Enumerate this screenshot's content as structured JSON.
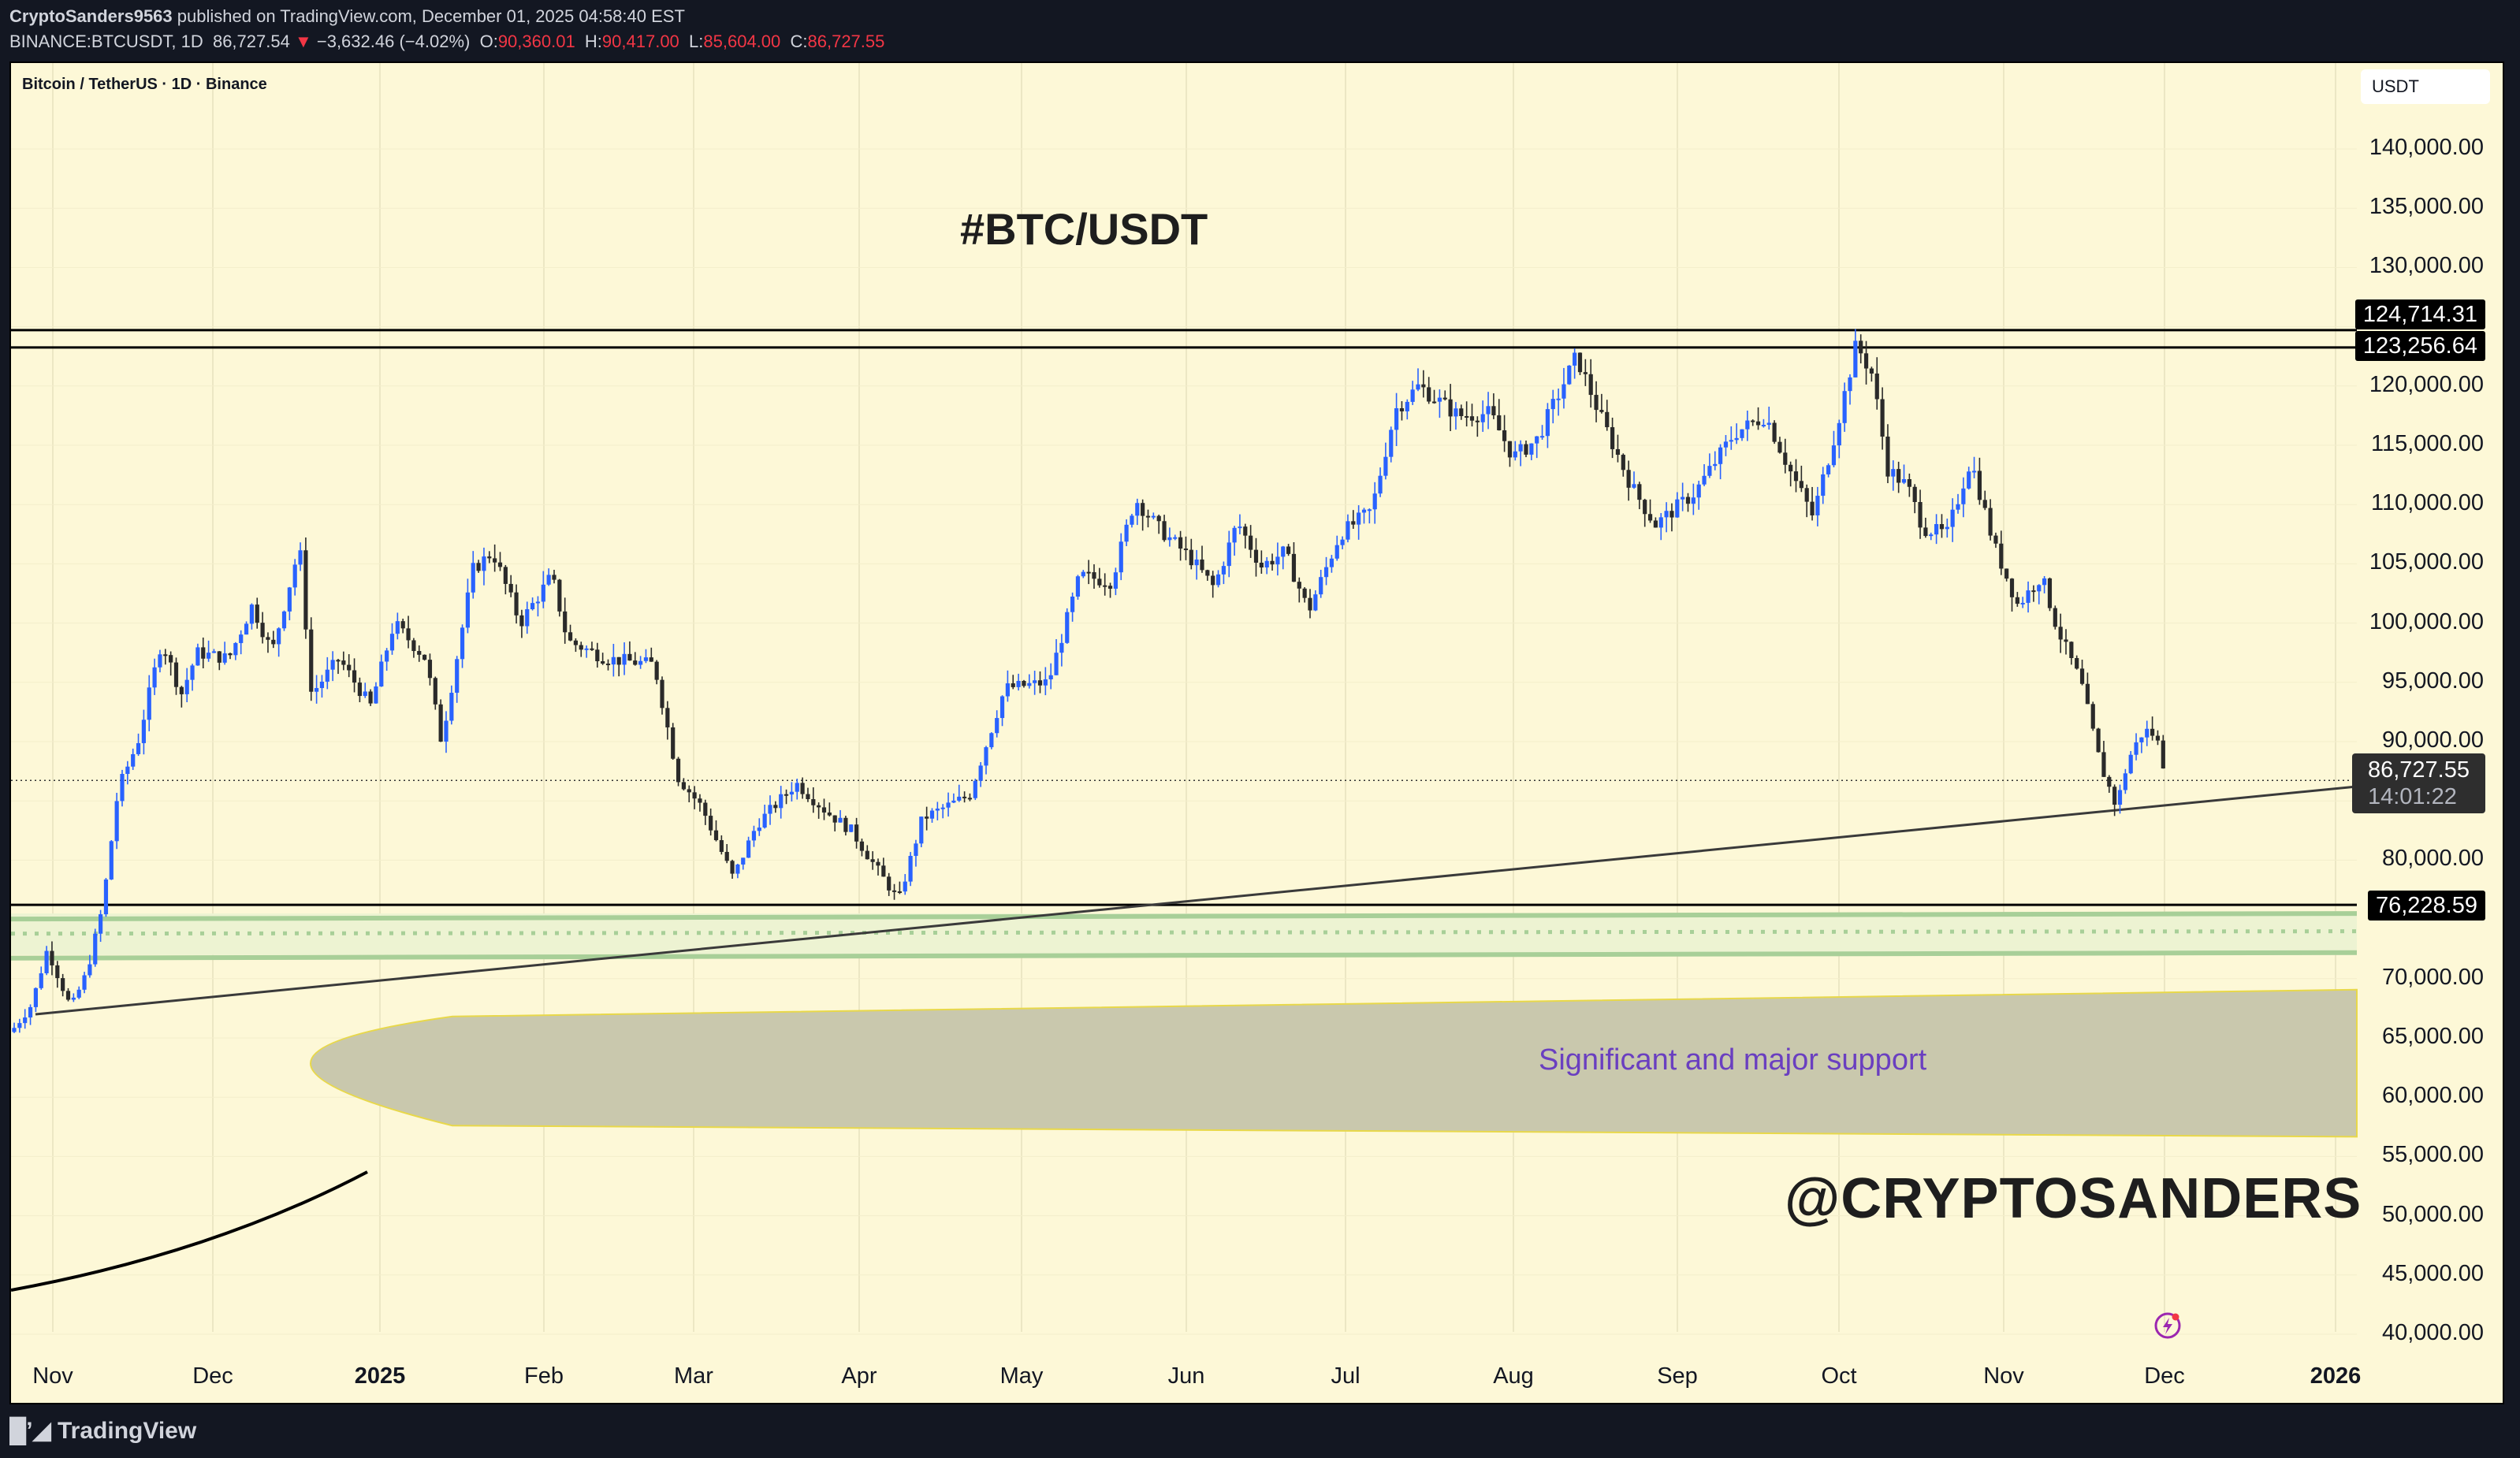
{
  "header": {
    "author": "CryptoSanders9563",
    "published_text": "published on TradingView.com, December 01, 2025 04:58:40 EST",
    "symbol_line": "BINANCE:BTCUSDT, 1D",
    "last": "86,727.54",
    "change": "−3,632.46 (−4.02%)",
    "o_label": "O:",
    "o": "90,360.01",
    "h_label": "H:",
    "h": "90,417.00",
    "l_label": "L:",
    "l": "85,604.00",
    "c_label": "C:",
    "c": "86,727.55"
  },
  "chart": {
    "legend": "Bitcoin / TetherUS · 1D · Binance",
    "currency_button": "USDT",
    "title_annotation": "#BTC/USDT",
    "support_annotation": "Significant and major support",
    "watermark": "@CRYPTOSANDERS",
    "current_price_tag": "86,727.55",
    "countdown": "14:01:22",
    "level_tags": [
      "124,714.31",
      "123,256.64",
      "76,228.59"
    ]
  },
  "footer": {
    "brand": "TradingView"
  },
  "colors": {
    "background": "#fdf8d7",
    "bull_candle": "#2962ff",
    "bear_candle": "#2a2a2a",
    "support_zone": "#c9c8ad",
    "green_band": "#a8cf98",
    "annotation_purple": "#6a3fc0"
  },
  "chart_data": {
    "type": "candlestick",
    "title": "#BTC/USDT",
    "subtitle": "Bitcoin / TetherUS · 1D · Binance",
    "xlabel": "",
    "ylabel": "USDT",
    "x_ticks": [
      "Nov",
      "Dec",
      "2025",
      "Feb",
      "Mar",
      "Apr",
      "May",
      "Jun",
      "Jul",
      "Aug",
      "Sep",
      "Oct",
      "Nov",
      "Dec",
      "2026"
    ],
    "y_ticks": [
      140000,
      135000,
      130000,
      125000,
      120000,
      115000,
      110000,
      105000,
      100000,
      95000,
      90000,
      85000,
      80000,
      75000,
      70000,
      65000,
      60000,
      55000,
      50000,
      45000,
      40000
    ],
    "ylim": [
      40000,
      142000
    ],
    "grid": true,
    "horizontal_levels": [
      124714.31,
      123256.64,
      76228.59
    ],
    "current_price": 86727.55,
    "support_zone": {
      "label": "Significant and major support",
      "from": 56000,
      "to": 70000
    },
    "green_band": {
      "from": 72000,
      "to": 75500
    },
    "trendline": {
      "from": {
        "date": "2024-11-04",
        "price": 67500
      },
      "to": {
        "date": "2026-01-01",
        "price": 86900
      }
    },
    "monthly_closes_approx": [
      {
        "month": "2024-11",
        "open": 70000,
        "high": 99600,
        "low": 66800,
        "close": 96400
      },
      {
        "month": "2024-12",
        "open": 96400,
        "high": 108300,
        "low": 90500,
        "close": 93500
      },
      {
        "month": "2025-01",
        "open": 93500,
        "high": 109500,
        "low": 89200,
        "close": 102400
      },
      {
        "month": "2025-02",
        "open": 102400,
        "high": 102700,
        "low": 78200,
        "close": 84300
      },
      {
        "month": "2025-03",
        "open": 84300,
        "high": 95000,
        "low": 76600,
        "close": 82500
      },
      {
        "month": "2025-04",
        "open": 82500,
        "high": 95700,
        "low": 74500,
        "close": 94200
      },
      {
        "month": "2025-05",
        "open": 94200,
        "high": 111900,
        "low": 93300,
        "close": 104600
      },
      {
        "month": "2025-06",
        "open": 104600,
        "high": 110500,
        "low": 98200,
        "close": 107100
      },
      {
        "month": "2025-07",
        "open": 107100,
        "high": 123200,
        "low": 105100,
        "close": 115700
      },
      {
        "month": "2025-08",
        "open": 115700,
        "high": 124500,
        "low": 107400,
        "close": 108200
      },
      {
        "month": "2025-09",
        "open": 108200,
        "high": 117900,
        "low": 107200,
        "close": 114000
      },
      {
        "month": "2025-10",
        "open": 114000,
        "high": 126200,
        "low": 102000,
        "close": 109500
      },
      {
        "month": "2025-11",
        "open": 109500,
        "high": 110800,
        "low": 80600,
        "close": 90400
      },
      {
        "month": "2025-12",
        "open": 90360,
        "high": 90417,
        "low": 85604,
        "close": 86727.55
      }
    ]
  }
}
